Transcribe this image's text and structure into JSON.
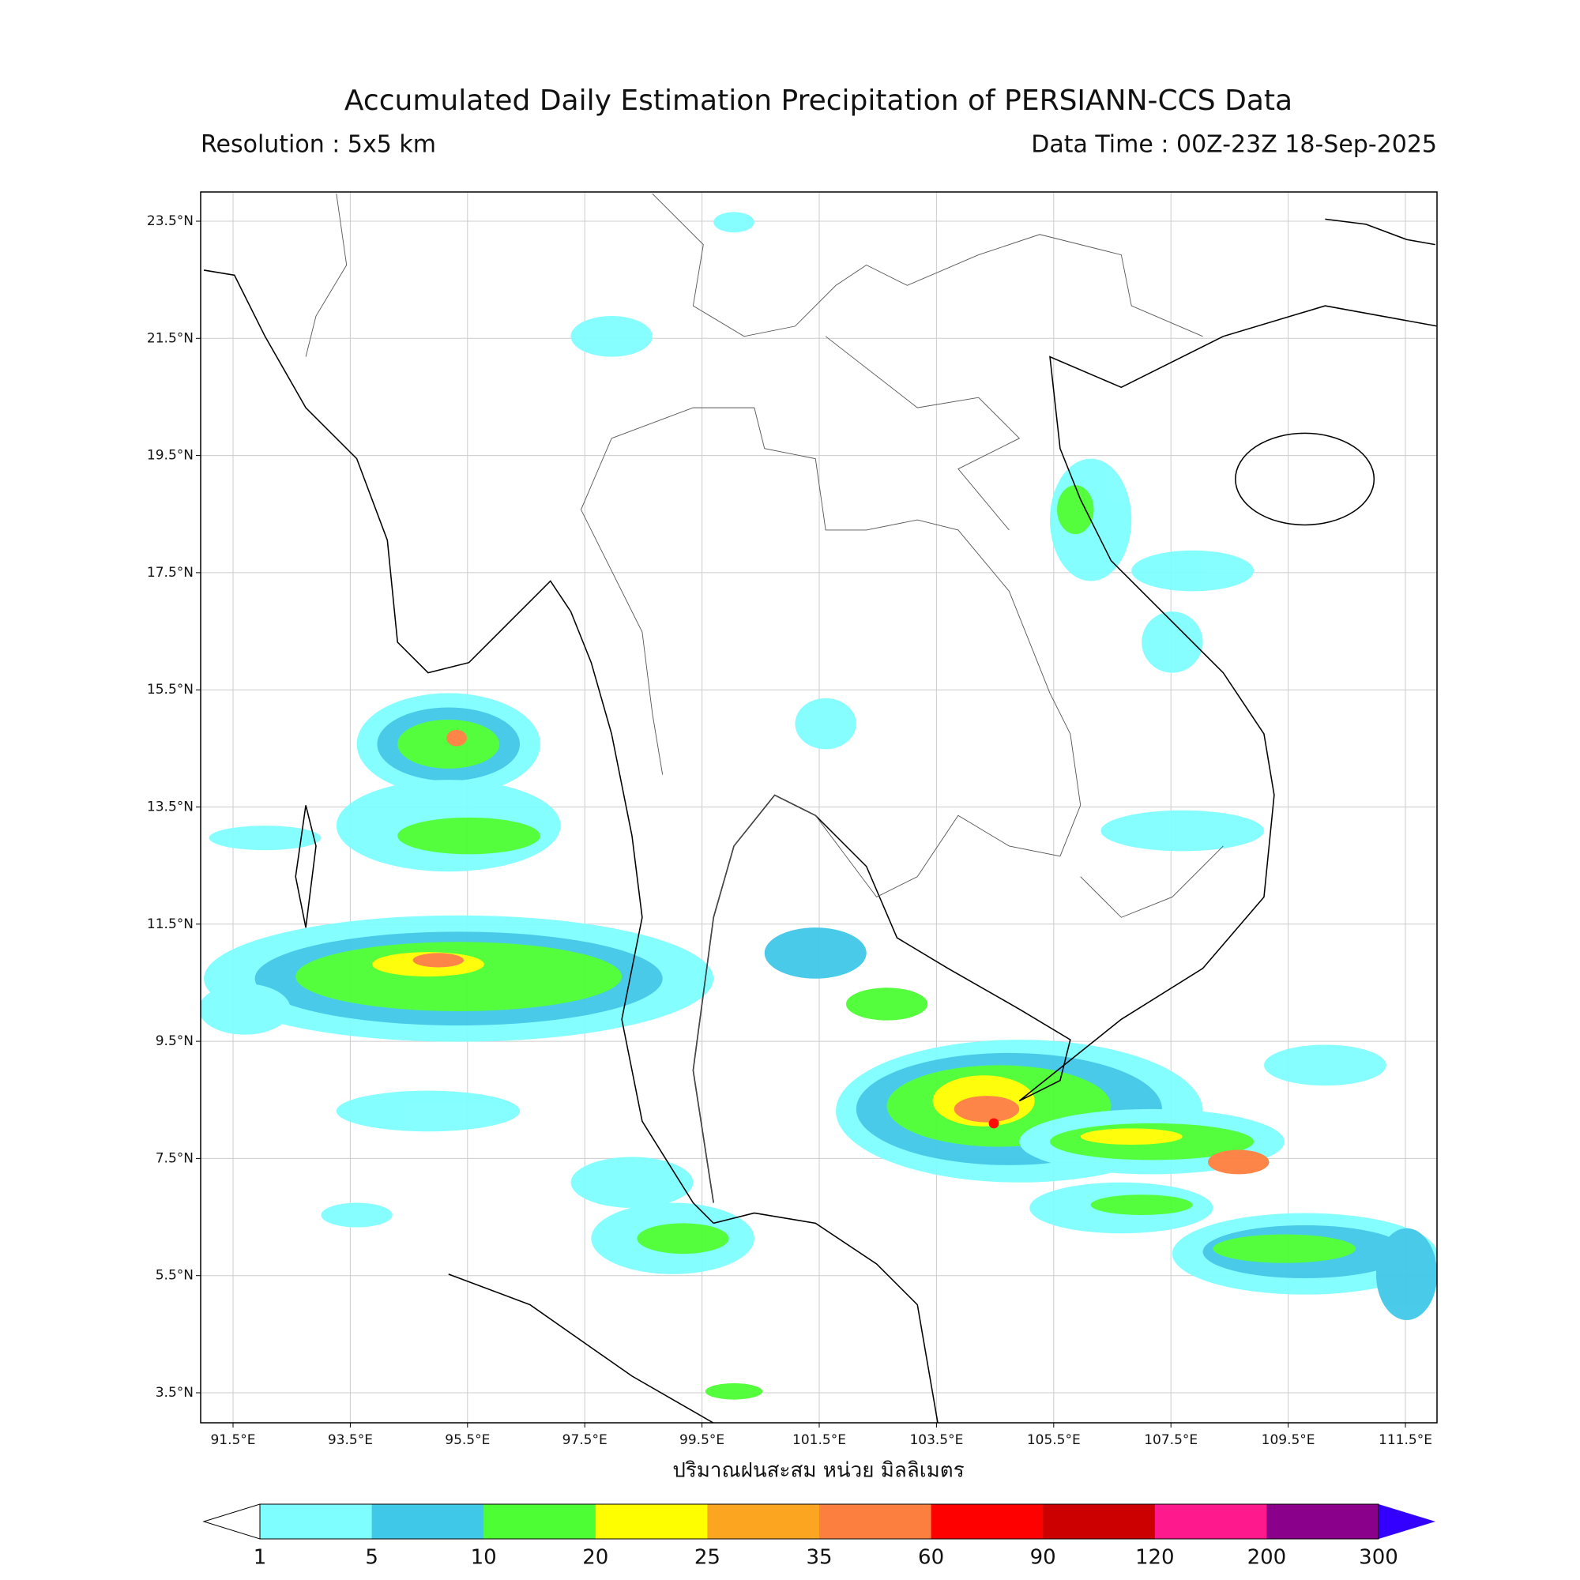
{
  "header": {
    "title": "Accumulated Daily Estimation Precipitation of PERSIANN-CCS Data",
    "resolution": "Resolution : 5x5 km",
    "data_time": "Data Time : 00Z-23Z 18-Sep-2025"
  },
  "map": {
    "lon_ticks": [
      {
        "value": 91.5,
        "label": "91.5°E"
      },
      {
        "value": 93.5,
        "label": "93.5°E"
      },
      {
        "value": 95.5,
        "label": "95.5°E"
      },
      {
        "value": 97.5,
        "label": "97.5°E"
      },
      {
        "value": 99.5,
        "label": "99.5°E"
      },
      {
        "value": 101.5,
        "label": "101.5°E"
      },
      {
        "value": 103.5,
        "label": "103.5°E"
      },
      {
        "value": 105.5,
        "label": "105.5°E"
      },
      {
        "value": 107.5,
        "label": "107.5°E"
      },
      {
        "value": 109.5,
        "label": "109.5°E"
      },
      {
        "value": 111.5,
        "label": "111.5°E"
      }
    ],
    "lat_ticks": [
      {
        "value": 23.5,
        "label": "23.5°N"
      },
      {
        "value": 21.5,
        "label": "21.5°N"
      },
      {
        "value": 19.5,
        "label": "19.5°N"
      },
      {
        "value": 17.5,
        "label": "17.5°N"
      },
      {
        "value": 15.5,
        "label": "15.5°N"
      },
      {
        "value": 13.5,
        "label": "13.5°N"
      },
      {
        "value": 11.5,
        "label": "11.5°N"
      },
      {
        "value": 9.5,
        "label": "9.5°N"
      },
      {
        "value": 7.5,
        "label": "7.5°N"
      },
      {
        "value": 5.5,
        "label": "5.5°N"
      },
      {
        "value": 3.5,
        "label": "3.5°N"
      }
    ],
    "xlabel": "ปริมาณฝนสะสม หน่วย มิลลิเมตร"
  },
  "colorbar": {
    "levels": [
      1,
      5,
      10,
      20,
      25,
      35,
      60,
      90,
      120,
      200,
      300
    ],
    "colors": [
      "#7ffeff",
      "#40c8e8",
      "#4cfe33",
      "#fefe00",
      "#fca520",
      "#fd7f3f",
      "#fe0000",
      "#cc0000",
      "#fe1a8c",
      "#8b008b"
    ],
    "under_color": "#ffffff",
    "over_color": "#3300ff"
  }
}
